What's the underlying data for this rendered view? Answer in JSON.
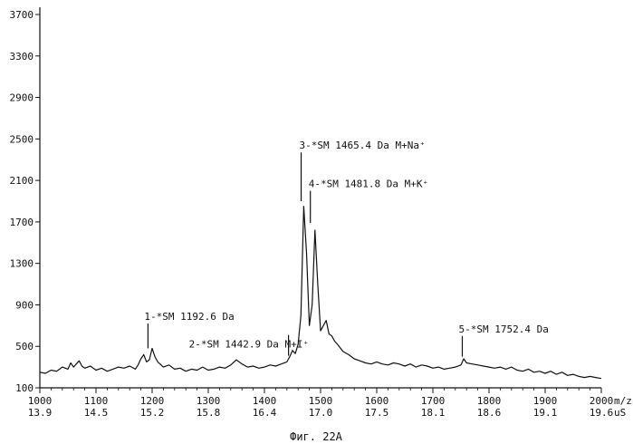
{
  "chart_data": {
    "type": "line",
    "title": "",
    "caption": "Фиг. 22А",
    "xlabel": "m/z",
    "xlabel_secondary": "uS",
    "ylabel": "",
    "xlim": [
      1000,
      2000
    ],
    "ylim": [
      100,
      3700
    ],
    "y_ticks": [
      3700,
      3300,
      2900,
      2500,
      2100,
      1700,
      1300,
      900,
      500,
      100
    ],
    "x_ticks": [
      1000,
      1100,
      1200,
      1300,
      1400,
      1500,
      1600,
      1700,
      1800,
      1900,
      2000
    ],
    "x_ticks_secondary": [
      "13.9",
      "14.5",
      "15.2",
      "15.8",
      "16.4",
      "17.0",
      "17.5",
      "18.1",
      "18.6",
      "19.1",
      "19.6"
    ],
    "grid": false,
    "series": [
      {
        "x": [
          1000,
          1010,
          1020,
          1030,
          1040,
          1050,
          1055,
          1060,
          1065,
          1070,
          1075,
          1080,
          1090,
          1100,
          1110,
          1120,
          1130,
          1140,
          1150,
          1160,
          1170,
          1175,
          1180,
          1185,
          1190,
          1195,
          1200,
          1205,
          1210,
          1220,
          1230,
          1240,
          1250,
          1260,
          1270,
          1280,
          1290,
          1300,
          1310,
          1320,
          1330,
          1340,
          1350,
          1360,
          1370,
          1380,
          1390,
          1400,
          1410,
          1420,
          1430,
          1440,
          1445,
          1450,
          1455,
          1460,
          1465,
          1470,
          1475,
          1480,
          1485,
          1490,
          1495,
          1500,
          1505,
          1510,
          1515,
          1520,
          1525,
          1530,
          1540,
          1550,
          1560,
          1570,
          1580,
          1590,
          1600,
          1610,
          1620,
          1630,
          1640,
          1650,
          1660,
          1670,
          1680,
          1690,
          1700,
          1710,
          1720,
          1730,
          1740,
          1750,
          1755,
          1760,
          1770,
          1780,
          1790,
          1800,
          1810,
          1820,
          1830,
          1840,
          1850,
          1860,
          1870,
          1880,
          1890,
          1900,
          1910,
          1920,
          1930,
          1940,
          1950,
          1960,
          1970,
          1980,
          1990,
          2000
        ],
        "y": [
          250,
          240,
          270,
          260,
          300,
          280,
          340,
          300,
          330,
          360,
          310,
          290,
          310,
          270,
          290,
          260,
          280,
          300,
          290,
          310,
          280,
          320,
          380,
          420,
          350,
          370,
          480,
          400,
          350,
          300,
          320,
          280,
          290,
          260,
          280,
          270,
          300,
          270,
          280,
          300,
          290,
          320,
          370,
          330,
          300,
          310,
          290,
          300,
          320,
          310,
          330,
          350,
          400,
          460,
          430,
          520,
          800,
          1850,
          1400,
          700,
          900,
          1620,
          1100,
          650,
          700,
          750,
          620,
          600,
          550,
          520,
          450,
          420,
          380,
          360,
          340,
          330,
          350,
          330,
          320,
          340,
          330,
          310,
          330,
          300,
          320,
          310,
          290,
          300,
          280,
          290,
          300,
          320,
          380,
          340,
          330,
          320,
          310,
          300,
          290,
          300,
          280,
          300,
          270,
          260,
          280,
          250,
          260,
          240,
          260,
          230,
          250,
          220,
          230,
          210,
          200,
          210,
          200,
          190
        ]
      }
    ],
    "annotations": [
      {
        "text": "1-*SM 1192.6 Da",
        "x": 1192.6,
        "y_tip": 480,
        "y_base": 720
      },
      {
        "text": "2-*SM 1442.9 Da M+I⁺",
        "x": 1442.9,
        "y_tip": 410,
        "y_base": 610
      },
      {
        "text": "3-*SM 1465.4 Da M+Na⁺",
        "x": 1465.4,
        "y_tip": 1900,
        "y_base": 2370
      },
      {
        "text": "4-*SM 1481.8 Da M+K⁺",
        "x": 1481.8,
        "y_tip": 1690,
        "y_base": 2000
      },
      {
        "text": "5-*SM 1752.4 Da",
        "x": 1752.4,
        "y_tip": 400,
        "y_base": 600
      }
    ]
  }
}
